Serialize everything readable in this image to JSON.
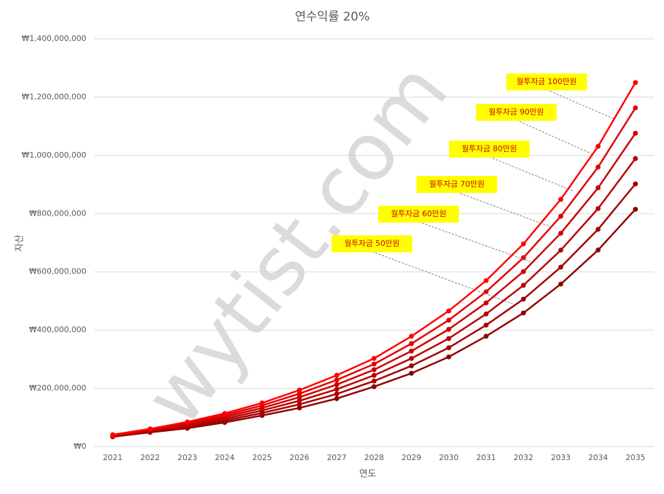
{
  "chart_data": {
    "type": "line",
    "title": "연수익률 20%",
    "x_label": "연도",
    "y_label": "자산",
    "watermark": "wytist.com",
    "categories": [
      "2021",
      "2022",
      "2023",
      "2024",
      "2025",
      "2026",
      "2027",
      "2028",
      "2029",
      "2030",
      "2031",
      "2032",
      "2033",
      "2034",
      "2035"
    ],
    "ylim": [
      0,
      1400000000
    ],
    "yticks": [
      {
        "value": 0,
        "label": "₩0"
      },
      {
        "value": 200000000,
        "label": "₩200,000,000"
      },
      {
        "value": 400000000,
        "label": "₩400,000,000"
      },
      {
        "value": 600000000,
        "label": "₩600,000,000"
      },
      {
        "value": 800000000,
        "label": "₩800,000,000"
      },
      {
        "value": 1000000000,
        "label": "₩1,000,000,000"
      },
      {
        "value": 1200000000,
        "label": "₩1,200,000,000"
      },
      {
        "value": 1400000000,
        "label": "₩1,400,000,000"
      }
    ],
    "grid": true,
    "series": [
      {
        "name": "월투자금 50만원",
        "color": "#8e0000",
        "values": [
          34000000,
          49000000,
          63000000,
          83000000,
          107000000,
          133000000,
          165000000,
          206000000,
          252000000,
          308000000,
          379000000,
          459000000,
          558000000,
          675000000,
          815000000
        ]
      },
      {
        "name": "월투자금 60만원",
        "color": "#a40000",
        "values": [
          35400000,
          51400000,
          67400000,
          89200000,
          115600000,
          145200000,
          181000000,
          225400000,
          277400000,
          339600000,
          417200000,
          506400000,
          616200000,
          746200000,
          902000000
        ]
      },
      {
        "name": "월투자금 70만원",
        "color": "#b80000",
        "values": [
          36800000,
          53800000,
          71800000,
          95400000,
          124200000,
          157400000,
          197000000,
          244800000,
          302800000,
          371200000,
          455400000,
          553800000,
          674400000,
          817400000,
          989000000
        ]
      },
      {
        "name": "월투자금 80만원",
        "color": "#cc0000",
        "values": [
          38200000,
          56200000,
          76200000,
          101600000,
          132800000,
          169600000,
          213000000,
          264200000,
          328200000,
          402800000,
          493600000,
          601200000,
          732600000,
          888600000,
          1076000000
        ]
      },
      {
        "name": "월투자금 90만원",
        "color": "#e00000",
        "values": [
          39600000,
          58600000,
          80600000,
          107800000,
          141400000,
          181800000,
          229000000,
          283600000,
          353600000,
          434400000,
          531800000,
          648600000,
          790800000,
          959800000,
          1163000000
        ]
      },
      {
        "name": "월투자금 100만원",
        "color": "#ff0000",
        "values": [
          41000000,
          61000000,
          85000000,
          114000000,
          150000000,
          194000000,
          245000000,
          303000000,
          379000000,
          466000000,
          570000000,
          696000000,
          849000000,
          1031000000,
          1250000000
        ]
      }
    ]
  }
}
